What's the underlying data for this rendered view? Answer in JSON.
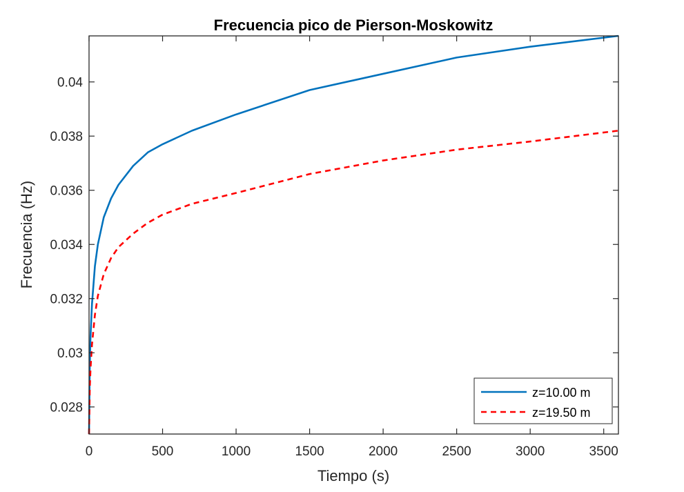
{
  "chart_data": {
    "type": "line",
    "title": "Frecuencia pico de Pierson-Moskowitz",
    "xlabel": "Tiempo (s)",
    "ylabel": "Frecuencia (Hz)",
    "xlim": [
      0,
      3600
    ],
    "ylim": [
      0.027,
      0.0417
    ],
    "xticks": [
      0,
      500,
      1000,
      1500,
      2000,
      2500,
      3000,
      3500
    ],
    "xtick_labels": [
      "0",
      "500",
      "1000",
      "1500",
      "2000",
      "2500",
      "3000",
      "3500"
    ],
    "yticks": [
      0.028,
      0.03,
      0.032,
      0.034,
      0.036,
      0.038,
      0.04
    ],
    "ytick_labels": [
      "0.028",
      "0.03",
      "0.032",
      "0.034",
      "0.036",
      "0.038",
      "0.04"
    ],
    "grid": false,
    "legend_position": "bottom-right",
    "series": [
      {
        "name": "z=10.00 m",
        "color": "#0072BD",
        "dash": "solid",
        "x": [
          0,
          5,
          10,
          20,
          40,
          60,
          100,
          150,
          200,
          300,
          400,
          500,
          700,
          1000,
          1500,
          2000,
          2500,
          3000,
          3600
        ],
        "y": [
          0.027,
          0.0295,
          0.0306,
          0.0318,
          0.0332,
          0.034,
          0.035,
          0.0357,
          0.0362,
          0.0369,
          0.0374,
          0.0377,
          0.0382,
          0.0388,
          0.0397,
          0.0403,
          0.0409,
          0.0413,
          0.0417
        ]
      },
      {
        "name": "z=19.50 m",
        "color": "#FF0000",
        "dash": "dashed",
        "x": [
          0,
          5,
          10,
          20,
          40,
          60,
          100,
          150,
          200,
          300,
          400,
          500,
          700,
          1000,
          1500,
          2000,
          2500,
          3000,
          3600
        ],
        "y": [
          0.027,
          0.0287,
          0.0294,
          0.0303,
          0.0314,
          0.0321,
          0.0329,
          0.0335,
          0.0339,
          0.0344,
          0.0348,
          0.0351,
          0.0355,
          0.0359,
          0.0366,
          0.0371,
          0.0375,
          0.0378,
          0.0382
        ]
      }
    ]
  }
}
